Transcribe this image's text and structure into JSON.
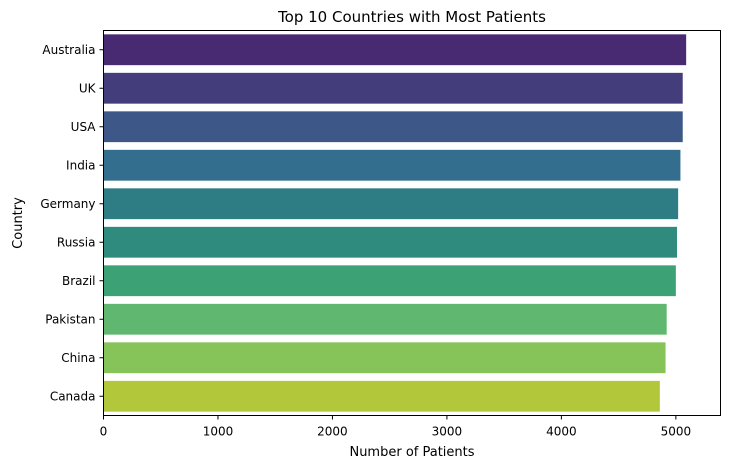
{
  "chart_data": {
    "type": "bar",
    "orientation": "horizontal",
    "title": "Top 10 Countries with Most Patients",
    "xlabel": "Number of Patients",
    "ylabel": "Country",
    "categories": [
      "Australia",
      "UK",
      "USA",
      "India",
      "Germany",
      "Russia",
      "Brazil",
      "Pakistan",
      "China",
      "Canada"
    ],
    "values": [
      5090,
      5060,
      5060,
      5040,
      5020,
      5010,
      5000,
      4920,
      4910,
      4860
    ],
    "xlim": [
      0,
      5390
    ],
    "xticks": [
      0,
      1000,
      2000,
      3000,
      4000,
      5000
    ],
    "colors": [
      "#472a71",
      "#443d7c",
      "#3d5888",
      "#336e8e",
      "#2e7c84",
      "#2e8b7e",
      "#3ca276",
      "#60b870",
      "#86c45a",
      "#b2c83a"
    ],
    "grid": false,
    "legend": "none"
  }
}
